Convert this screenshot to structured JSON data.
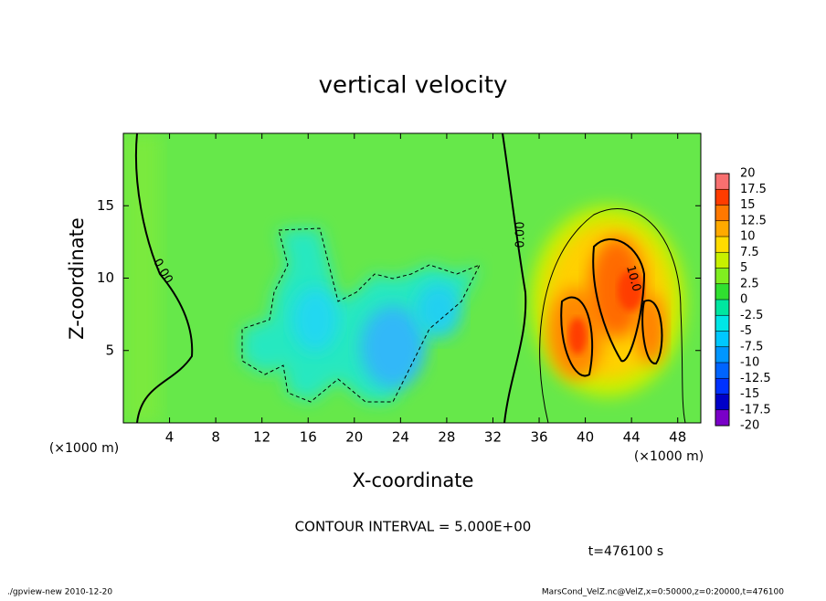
{
  "chart_data": {
    "type": "contour",
    "title": "vertical velocity",
    "x_label": "X-coordinate",
    "y_label": "Z-coordinate",
    "x_unit": "(×1000 m)",
    "xlim": [
      0,
      50
    ],
    "xticks": [
      4,
      8,
      12,
      16,
      20,
      24,
      28,
      32,
      36,
      40,
      44,
      48
    ],
    "ylim": [
      0,
      20
    ],
    "yticks": [
      5,
      10,
      15
    ],
    "colorbar": {
      "levels": [
        -20,
        -17.5,
        -15,
        -12.5,
        -10,
        -7.5,
        -5,
        -2.5,
        0,
        2.5,
        5,
        7.5,
        10,
        12.5,
        15,
        17.5,
        20
      ],
      "colors": [
        "#7a00c8",
        "#0000c8",
        "#0032ff",
        "#0064ff",
        "#0096ff",
        "#00c8ff",
        "#00e6e6",
        "#00e6a0",
        "#30e030",
        "#80ee20",
        "#c8f000",
        "#ffdc00",
        "#ffaa00",
        "#ff7800",
        "#ff3c00",
        "#f87070",
        "#f8b0b8"
      ]
    },
    "contour_labels": [
      "0.00",
      "0.00",
      "10.0"
    ],
    "contour_interval": "CONTOUR INTERVAL = 5.000E+00",
    "time_label": "t=476100 s",
    "footer_left": "./gpview-new   2010-12-20",
    "footer_right": "MarsCond_VelZ.nc@VelZ,x=0:50000,z=0:20000,t=476100"
  }
}
